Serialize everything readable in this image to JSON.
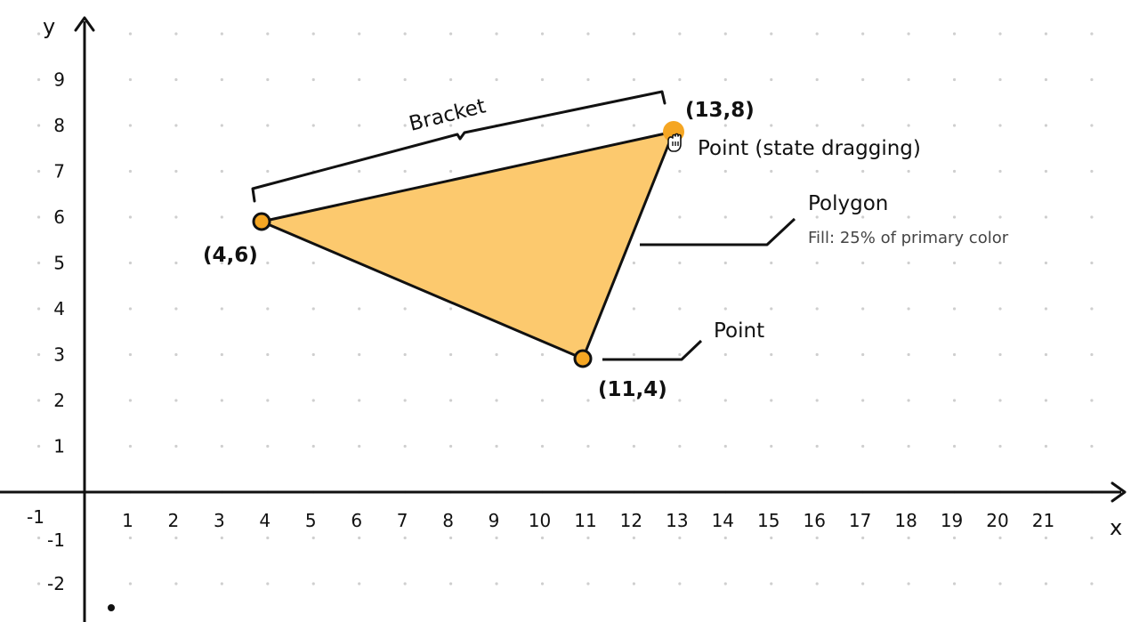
{
  "axes": {
    "x_label": "x",
    "y_label": "y",
    "x_ticks": [
      -1,
      1,
      2,
      3,
      4,
      5,
      6,
      7,
      8,
      9,
      10,
      11,
      12,
      13,
      14,
      15,
      16,
      17,
      18,
      19,
      20,
      21
    ],
    "y_ticks": [
      9,
      8,
      7,
      6,
      5,
      4,
      3,
      2,
      1,
      -1,
      -2
    ],
    "grid": "dots"
  },
  "colors": {
    "primary": "#F5A623",
    "polygon_fill": "#FCC96E",
    "stroke": "#111111"
  },
  "polygon": {
    "vertices": [
      {
        "name": "vertex-a",
        "label": "(4,6)",
        "label_at": [
          4,
          6
        ]
      },
      {
        "name": "vertex-b",
        "label": "(13,8)",
        "label_at": [
          13,
          8
        ]
      },
      {
        "name": "vertex-c",
        "label": "(11,4)",
        "label_at": [
          11,
          3
        ]
      }
    ],
    "title": "Polygon",
    "subtitle": "Fill: 25% of primary color"
  },
  "bracket": {
    "label": "Bracket"
  },
  "callouts": {
    "dragging_point": "Point (state dragging)",
    "point": "Point"
  }
}
